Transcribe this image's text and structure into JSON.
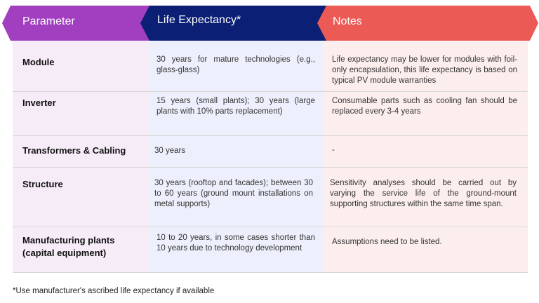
{
  "header": {
    "columns": [
      "Parameter",
      "Life Expectancy*",
      "Notes"
    ],
    "colors": {
      "parameter": "#a13fc0",
      "life_expectancy": "#0b1f74",
      "notes": "#eb5a55"
    }
  },
  "rows": [
    {
      "parameter": "Module",
      "life_expectancy": "30 years for mature technologies (e.g., glass-glass)",
      "notes": "Life expectancy may be lower for modules with foil-only encapsulation, this life expectancy is based on typical PV module warranties"
    },
    {
      "parameter": "Inverter",
      "life_expectancy": "15 years (small plants); 30 years (large plants with 10% parts replacement)",
      "notes": "Consumable parts such as cooling fan should be replaced every 3-4 years"
    },
    {
      "parameter": "Transformers & Cabling",
      "life_expectancy": "30 years",
      "notes": "-"
    },
    {
      "parameter": "Structure",
      "life_expectancy": "30 years (rooftop and facades); between 30 to 60 years (ground mount installations on metal supports)",
      "notes": "Sensitivity analyses should be carried out by varying the service life of the ground-mount supporting structures within the same time span."
    },
    {
      "parameter": "Manufacturing plants (capital equipment)",
      "life_expectancy": "10 to 20 years, in some cases shorter than 10 years due to technology development",
      "notes": "Assumptions need to be listed."
    }
  ],
  "footnote": "*Use manufacturer's ascribed life expectancy if available"
}
